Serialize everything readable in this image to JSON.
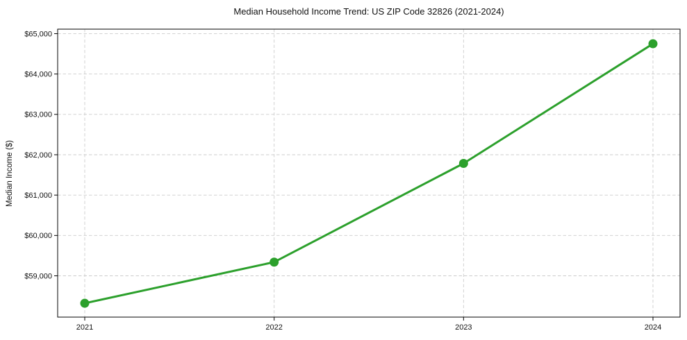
{
  "page": {
    "background_color": "#ffffff"
  },
  "chart_data": {
    "type": "line",
    "title": "Median Household Income Trend: US ZIP Code 32826 (2021-2024)",
    "xlabel": "",
    "ylabel": "Median Income ($)",
    "categories": [
      "2021",
      "2022",
      "2023",
      "2024"
    ],
    "series": [
      {
        "name": "Median Household Income",
        "values": [
          58320,
          59340,
          61785,
          64750
        ],
        "color": "#2ca02c",
        "marker": "circle",
        "marker_radius": 6.5,
        "line_width": 3
      }
    ],
    "yticks": [
      59000,
      60000,
      61000,
      62000,
      63000,
      64000,
      65000
    ],
    "ytick_labels": [
      "$59,000",
      "$60,000",
      "$61,000",
      "$62,000",
      "$63,000",
      "$64,000",
      "$65,000"
    ],
    "ylim": [
      57977,
      65112
    ],
    "ytick_prefix": "$",
    "grid": true,
    "grid_style": "dashed",
    "grid_color": "#cccccc",
    "spine_color": "#000000",
    "legend": "none"
  }
}
